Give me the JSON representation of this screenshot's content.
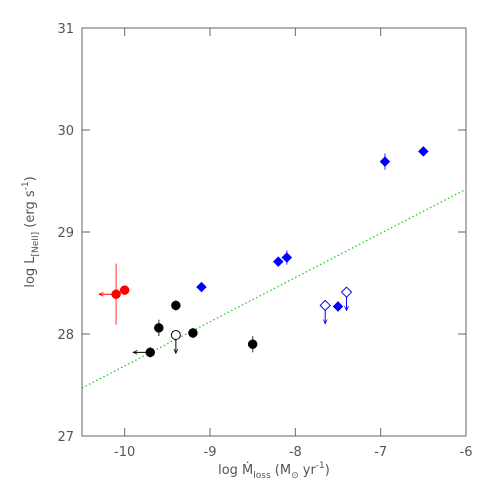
{
  "chart_data": {
    "type": "scatter",
    "xlabel": [
      "log Ṁ",
      "loss",
      " (M",
      "⊙",
      " yr",
      "-1",
      ")"
    ],
    "ylabel": [
      "log L",
      "[NeII]",
      " (erg s",
      "-1",
      ")"
    ],
    "xlim": [
      -10.5,
      -6
    ],
    "ylim": [
      27,
      31
    ],
    "xticks": [
      -10,
      -9,
      -8,
      -7,
      -6
    ],
    "yticks": [
      27,
      28,
      29,
      30,
      31
    ],
    "series": [
      {
        "color": "#000000",
        "marker": "circle",
        "filled": true,
        "x": [
          -9.7,
          -9.6,
          -9.4,
          -9.2,
          -8.5
        ],
        "y": [
          27.82,
          28.06,
          28.28,
          28.01,
          27.9
        ],
        "yerr": [
          0.05,
          0.08,
          0.05,
          0.05,
          0.08
        ],
        "x_upper_limit": [
          true,
          false,
          false,
          false,
          false
        ]
      },
      {
        "color": "#000000",
        "marker": "circle",
        "filled": false,
        "x": [
          -9.4
        ],
        "y": [
          27.99
        ],
        "y_upper_limit": [
          true
        ]
      },
      {
        "color": "#ff0000",
        "marker": "circle",
        "filled": true,
        "x": [
          -10.1,
          -10
        ],
        "y": [
          28.39,
          28.43
        ],
        "yerr": [
          0.3,
          0
        ],
        "x_upper_limit": [
          true,
          false
        ]
      },
      {
        "color": "#0000ff",
        "marker": "diamond",
        "filled": true,
        "x": [
          -9.1,
          -8.2,
          -8.1,
          -7.5,
          -6.95,
          -6.5
        ],
        "y": [
          28.46,
          28.71,
          28.75,
          28.27,
          29.69,
          29.79
        ],
        "yerr": [
          0,
          0.04,
          0.07,
          0.05,
          0.08,
          0
        ]
      },
      {
        "color": "#0000ff",
        "marker": "diamond",
        "filled": false,
        "x": [
          -7.65,
          -7.4
        ],
        "y": [
          28.28,
          28.41
        ],
        "y_upper_limit": [
          true,
          true
        ]
      }
    ],
    "fit_line": {
      "color": "#22cc22",
      "x": [
        -10.5,
        -6
      ],
      "y": [
        27.47,
        29.42
      ]
    }
  }
}
